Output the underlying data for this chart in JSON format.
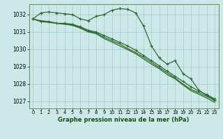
{
  "title": "Graphe pression niveau de la mer (hPa)",
  "background_color": "#cce8e8",
  "grid_color": "#aad0d0",
  "line_color": "#2d6a2d",
  "x_ticks": [
    0,
    1,
    2,
    3,
    4,
    5,
    6,
    7,
    8,
    9,
    10,
    11,
    12,
    13,
    14,
    15,
    16,
    17,
    18,
    19,
    20,
    21,
    22,
    23
  ],
  "yticks": [
    1027,
    1028,
    1029,
    1030,
    1031,
    1032
  ],
  "ylim": [
    1026.6,
    1032.6
  ],
  "xlim": [
    -0.5,
    23.5
  ],
  "series": [
    [
      1031.75,
      1032.1,
      1032.15,
      1032.1,
      1032.05,
      1032.0,
      1031.75,
      1031.65,
      1031.9,
      1032.0,
      1032.25,
      1032.35,
      1032.3,
      1032.1,
      1031.35,
      1030.2,
      1029.5,
      1029.15,
      1029.35,
      1028.6,
      1028.3,
      1027.65,
      1027.35,
      1027.1
    ],
    [
      1031.75,
      1031.6,
      1031.6,
      1031.5,
      1031.5,
      1031.45,
      1031.3,
      1031.1,
      1031.0,
      1030.8,
      1030.6,
      1030.4,
      1030.2,
      1029.95,
      1029.65,
      1029.35,
      1029.05,
      1028.75,
      1028.45,
      1028.15,
      1027.85,
      1027.6,
      1027.4,
      1027.15
    ],
    [
      1031.75,
      1031.6,
      1031.55,
      1031.5,
      1031.45,
      1031.4,
      1031.25,
      1031.05,
      1030.95,
      1030.7,
      1030.5,
      1030.3,
      1030.05,
      1029.82,
      1029.55,
      1029.25,
      1028.95,
      1028.65,
      1028.35,
      1028.0,
      1027.7,
      1027.5,
      1027.3,
      1027.05
    ],
    [
      1031.75,
      1031.65,
      1031.6,
      1031.5,
      1031.45,
      1031.38,
      1031.22,
      1031.0,
      1030.9,
      1030.62,
      1030.42,
      1030.2,
      1029.98,
      1029.75,
      1029.45,
      1029.15,
      1028.88,
      1028.55,
      1028.3,
      1027.95,
      1027.62,
      1027.42,
      1027.2,
      1026.95
    ]
  ]
}
